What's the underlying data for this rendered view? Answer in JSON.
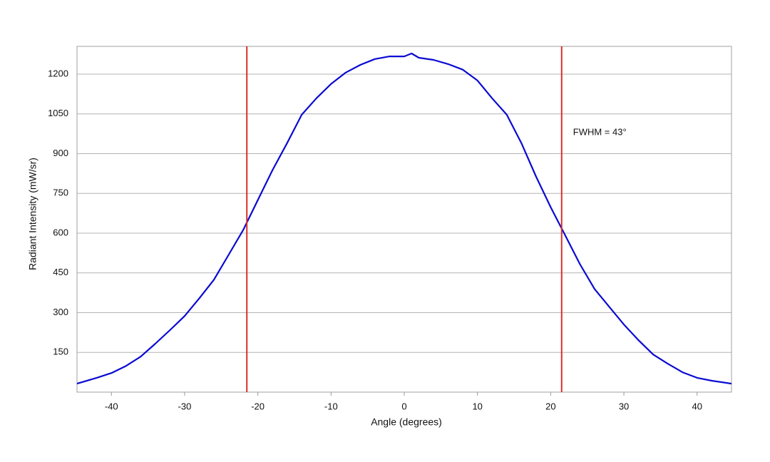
{
  "chart_data": {
    "type": "line",
    "x_label": "Angle (degrees)",
    "y_label": "Radiant Intensity (mW/sr)",
    "x": [
      -44.7,
      -42,
      -40,
      -38,
      -36,
      -34,
      -32,
      -30,
      -28,
      -26,
      -24,
      -22,
      -20,
      -18,
      -16,
      -14,
      -12,
      -10,
      -8,
      -6,
      -4,
      -2,
      0,
      1,
      2,
      4,
      6,
      8,
      10,
      12,
      14,
      16,
      18,
      20,
      22,
      24,
      26,
      28,
      30,
      32,
      34,
      36,
      38,
      40,
      42,
      44.7
    ],
    "values": [
      32,
      54,
      72,
      99,
      134,
      183,
      234,
      287,
      354,
      424,
      518,
      612,
      725,
      838,
      940,
      1047,
      1109,
      1163,
      1206,
      1235,
      1257,
      1267,
      1267,
      1278,
      1262,
      1254,
      1238,
      1217,
      1176,
      1109,
      1047,
      940,
      814,
      698,
      591,
      483,
      389,
      322,
      255,
      196,
      142,
      107,
      75,
      54,
      43,
      32
    ],
    "color": "#0a0ad2",
    "vlines": [
      -21.5,
      21.5
    ],
    "vline_color": "#d9302a",
    "annotation": "FWHM = 43°",
    "xlim": [
      -44.7,
      44.7
    ],
    "ylim": [
      0,
      1305
    ],
    "xticks": [
      -40,
      -30,
      -20,
      -10,
      0,
      10,
      20,
      30,
      40
    ],
    "yticks": [
      150,
      300,
      450,
      600,
      750,
      900,
      1050,
      1200
    ],
    "grid": true
  }
}
